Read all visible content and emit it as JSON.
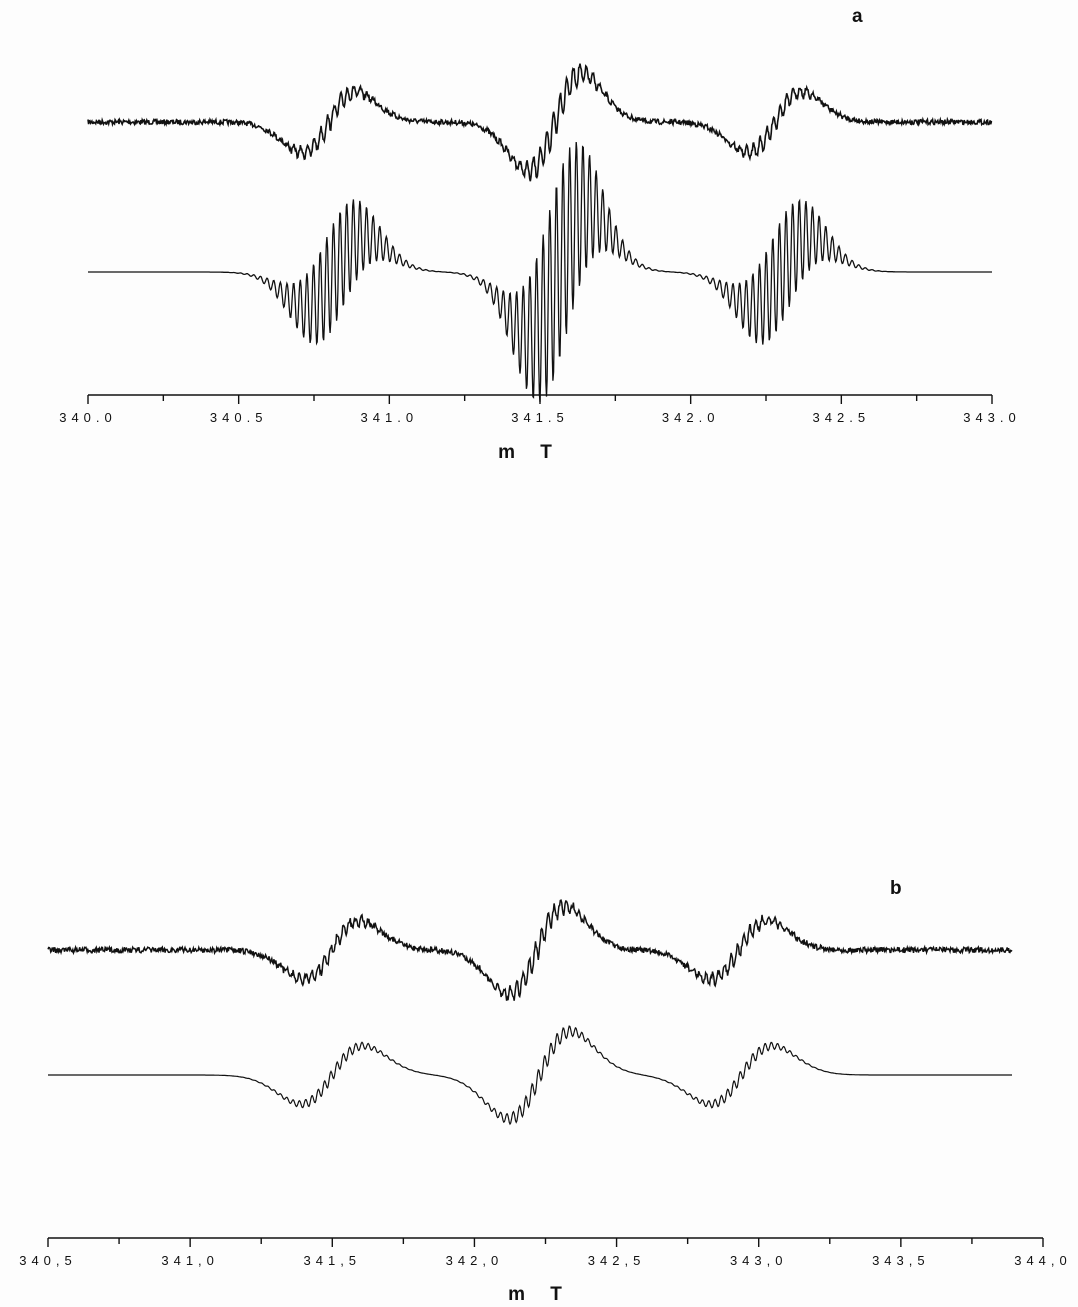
{
  "chart_data": [
    {
      "type": "line",
      "panel_label": "a",
      "xlabel": "m T",
      "ylabel": "",
      "xlim": [
        340.0,
        343.0
      ],
      "ticks": [
        "340.0",
        "340.5",
        "341.0",
        "341.5",
        "342.0",
        "342.5",
        "343.0"
      ],
      "tick_values": [
        340.0,
        340.5,
        341.0,
        341.5,
        342.0,
        342.5,
        343.0
      ],
      "grid": false,
      "series": [
        {
          "kind": "experimental",
          "hyperfine_groups": [
            {
              "center": 340.8,
              "halfwidth": 0.09,
              "amplitude": 1.0,
              "ripple": 0.18
            },
            {
              "center": 341.55,
              "halfwidth": 0.09,
              "amplitude": 1.6,
              "ripple": 0.18
            },
            {
              "center": 342.28,
              "halfwidth": 0.09,
              "amplitude": 1.0,
              "ripple": 0.18
            }
          ],
          "noise": 0.05
        },
        {
          "kind": "simulated",
          "hyperfine_groups": [
            {
              "center": 340.82,
              "halfwidth": 0.1,
              "amplitude": 1.0,
              "ripple": 0.9
            },
            {
              "center": 341.56,
              "halfwidth": 0.1,
              "amplitude": 1.8,
              "ripple": 0.9
            },
            {
              "center": 342.3,
              "halfwidth": 0.1,
              "amplitude": 1.0,
              "ripple": 0.9
            }
          ],
          "noise": 0
        }
      ]
    },
    {
      "type": "line",
      "panel_label": "b",
      "xlabel": "m T",
      "ylabel": "",
      "xlim": [
        340.5,
        344.0
      ],
      "ticks": [
        "340,5",
        "341,0",
        "341,5",
        "342,0",
        "342,5",
        "343,0",
        "343,5",
        "344,0"
      ],
      "tick_values": [
        340.5,
        341.0,
        341.5,
        342.0,
        342.5,
        343.0,
        343.5,
        344.0
      ],
      "grid": false,
      "series": [
        {
          "kind": "experimental",
          "hyperfine_groups": [
            {
              "center": 341.5,
              "halfwidth": 0.1,
              "amplitude": 1.0,
              "ripple": 0.15
            },
            {
              "center": 342.22,
              "halfwidth": 0.1,
              "amplitude": 1.5,
              "ripple": 0.15
            },
            {
              "center": 342.93,
              "halfwidth": 0.1,
              "amplitude": 1.0,
              "ripple": 0.15
            }
          ],
          "noise": 0.06
        },
        {
          "kind": "simulated",
          "hyperfine_groups": [
            {
              "center": 341.5,
              "halfwidth": 0.11,
              "amplitude": 1.0,
              "ripple": 0.12
            },
            {
              "center": 342.23,
              "halfwidth": 0.11,
              "amplitude": 1.5,
              "ripple": 0.12
            },
            {
              "center": 342.94,
              "halfwidth": 0.11,
              "amplitude": 1.0,
              "ripple": 0.12
            }
          ],
          "noise": 0
        }
      ]
    }
  ]
}
